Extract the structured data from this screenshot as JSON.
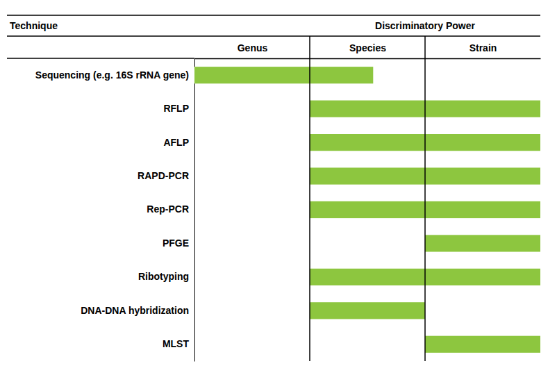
{
  "chart_data": {
    "type": "bar",
    "orientation": "horizontal",
    "title": "Discriminatory Power",
    "ylabel": "Technique",
    "categories": [
      "Sequencing (e.g. 16S rRNA gene)",
      "RFLP",
      "AFLP",
      "RAPD-PCR",
      "Rep-PCR",
      "PFGE",
      "Ribotyping",
      "DNA-DNA hybridization",
      "MLST"
    ],
    "base": [
      0.0,
      1.0,
      1.0,
      1.0,
      1.0,
      2.0,
      1.0,
      1.0,
      2.0
    ],
    "values": [
      1.55,
      3.0,
      3.0,
      3.0,
      3.0,
      3.0,
      3.0,
      2.0,
      3.0
    ],
    "color": "#8DC63F",
    "xlim": [
      0,
      3
    ],
    "xticks": [
      {
        "value": 0.5,
        "label": "Genus"
      },
      {
        "value": 1.5,
        "label": "Species"
      },
      {
        "value": 2.5,
        "label": "Strain"
      }
    ],
    "dividers": [
      1.0,
      2.0
    ],
    "grid": false
  }
}
